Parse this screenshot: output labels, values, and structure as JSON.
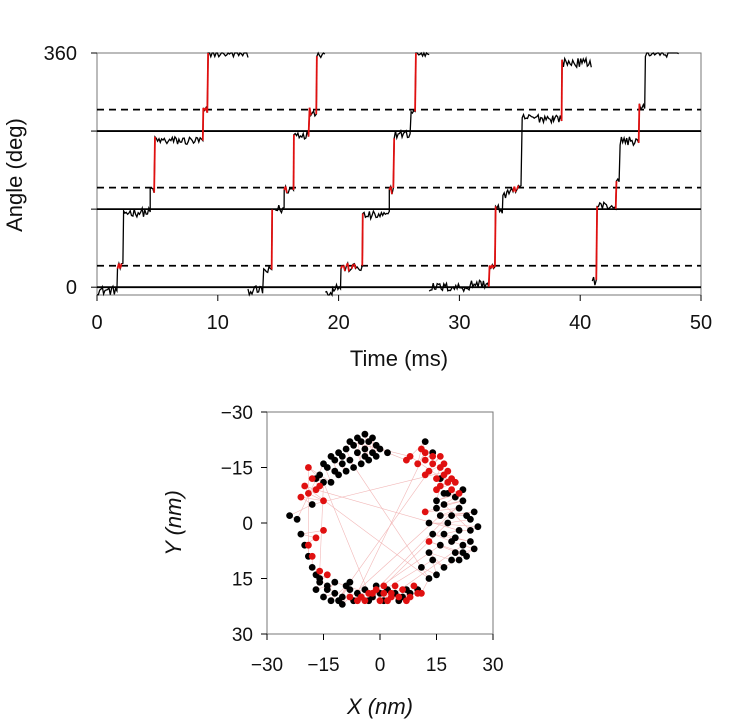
{
  "colors": {
    "trace": "#000000",
    "highlight": "#e01010",
    "frame": "#777777",
    "link": "#f2b8b8"
  },
  "chart_data": [
    {
      "type": "line",
      "title": "",
      "xlabel": "Time (ms)",
      "ylabel": "Angle (deg)",
      "xlim": [
        0,
        50
      ],
      "ylim": [
        -12,
        360
      ],
      "xticks": [
        0,
        10,
        20,
        30,
        40,
        50
      ],
      "xtick_labels": [
        "0",
        "10",
        "20",
        "30",
        "40",
        "50"
      ],
      "yticks": [
        0,
        360
      ],
      "ytick_labels": [
        "0",
        "360"
      ],
      "solid_lines": [
        0,
        120,
        240
      ],
      "dashed_lines": [
        33,
        153,
        273
      ],
      "grid": false,
      "legend": "none",
      "steps": [
        {
          "t": 0.0,
          "a": -5
        },
        {
          "t": 1.7,
          "a": 30
        },
        {
          "t": 2.2,
          "a": 115
        },
        {
          "t": 4.4,
          "a": 150
        },
        {
          "t": 4.8,
          "a": 225
        },
        {
          "t": 8.8,
          "a": 270
        },
        {
          "t": 9.2,
          "a": 360
        },
        {
          "t": 12.5,
          "a": -5
        },
        {
          "t": 13.8,
          "a": 25
        },
        {
          "t": 14.5,
          "a": 120
        },
        {
          "t": 15.5,
          "a": 150
        },
        {
          "t": 16.3,
          "a": 235
        },
        {
          "t": 17.6,
          "a": 270
        },
        {
          "t": 18.2,
          "a": 360
        },
        {
          "t": 18.9,
          "a": -10
        },
        {
          "t": 19.5,
          "a": 0
        },
        {
          "t": 20.2,
          "a": 30
        },
        {
          "t": 22.0,
          "a": 110
        },
        {
          "t": 24.2,
          "a": 150
        },
        {
          "t": 24.6,
          "a": 235
        },
        {
          "t": 26.0,
          "a": 270
        },
        {
          "t": 26.4,
          "a": 360
        },
        {
          "t": 27.5,
          "a": 0
        },
        {
          "t": 31.0,
          "a": 5
        },
        {
          "t": 32.5,
          "a": 30
        },
        {
          "t": 33.0,
          "a": 120
        },
        {
          "t": 33.6,
          "a": 140
        },
        {
          "t": 34.0,
          "a": 150
        },
        {
          "t": 35.2,
          "a": 260
        },
        {
          "t": 37.8,
          "a": 260
        },
        {
          "t": 38.5,
          "a": 345
        },
        {
          "t": 41.0,
          "a": 10
        },
        {
          "t": 41.4,
          "a": 125
        },
        {
          "t": 43.0,
          "a": 160
        },
        {
          "t": 43.3,
          "a": 225
        },
        {
          "t": 44.9,
          "a": 275
        },
        {
          "t": 45.4,
          "a": 360
        }
      ]
    },
    {
      "type": "scatter",
      "title": "",
      "xlabel": "X (nm)",
      "ylabel": "Y (nm)",
      "xlim": [
        -30,
        30
      ],
      "ylim": [
        -30,
        30
      ],
      "y_inverted": true,
      "xticks": [
        -30,
        -15,
        0,
        15,
        30
      ],
      "xtick_labels": [
        "−30",
        "−15",
        "0",
        "15",
        "30"
      ],
      "yticks": [
        -30,
        -15,
        0,
        15,
        30
      ],
      "ytick_labels": [
        "−30",
        "−15",
        "0",
        "15",
        "30"
      ],
      "grid": false,
      "legend": "none",
      "series": [
        {
          "color": "#000000",
          "points": [
            [
              -15,
              -16
            ],
            [
              -13,
              -18
            ],
            [
              -11,
              -19
            ],
            [
              -9,
              -20
            ],
            [
              -7,
              -21
            ],
            [
              -5,
              -22
            ],
            [
              -3,
              -22
            ],
            [
              -1,
              -21
            ],
            [
              0,
              -20
            ],
            [
              -2,
              -19
            ],
            [
              -4,
              -18
            ],
            [
              -6,
              -19
            ],
            [
              -8,
              -17
            ],
            [
              -10,
              -16
            ],
            [
              -12,
              -14
            ],
            [
              -14,
              -15
            ],
            [
              -16,
              -13
            ],
            [
              -17,
              -12
            ],
            [
              -12,
              -17
            ],
            [
              -6,
              -23
            ],
            [
              -4,
              -24
            ],
            [
              -8,
              -22
            ],
            [
              -10,
              -18
            ],
            [
              -3,
              -17
            ],
            [
              -1,
              -18
            ],
            [
              2,
              -19
            ],
            [
              -5,
              -16
            ],
            [
              -7,
              -15
            ],
            [
              -11,
              -13
            ],
            [
              -15,
              -11
            ],
            [
              -13,
              -11
            ],
            [
              -9,
              -14
            ],
            [
              -4,
              -20
            ],
            [
              -2,
              -23
            ],
            [
              12,
              -22
            ],
            [
              14,
              -19
            ],
            [
              16,
              -12
            ],
            [
              17,
              -8
            ],
            [
              15,
              -6
            ],
            [
              16,
              -2
            ],
            [
              18,
              0
            ],
            [
              17,
              3
            ],
            [
              19,
              5
            ],
            [
              20,
              8
            ],
            [
              21,
              10
            ],
            [
              22,
              6
            ],
            [
              24,
              2
            ],
            [
              23,
              -2
            ],
            [
              21,
              -4
            ],
            [
              20,
              -7
            ],
            [
              22,
              -9
            ],
            [
              25,
              -3
            ],
            [
              26,
              1
            ],
            [
              24,
              5
            ],
            [
              22,
              8
            ],
            [
              19,
              10
            ],
            [
              17,
              12
            ],
            [
              15,
              14
            ],
            [
              14,
              10
            ],
            [
              16,
              6
            ],
            [
              13,
              0
            ],
            [
              15,
              -4
            ],
            [
              18,
              -8
            ],
            [
              20,
              4
            ],
            [
              23,
              9
            ],
            [
              25,
              7
            ],
            [
              21,
              2
            ],
            [
              19,
              -2
            ],
            [
              17,
              -5
            ],
            [
              14,
              3
            ],
            [
              13,
              8
            ],
            [
              11,
              12
            ],
            [
              13,
              15
            ],
            [
              24,
              -1
            ],
            [
              22,
              -6
            ],
            [
              -16,
              16
            ],
            [
              -14,
              18
            ],
            [
              -12,
              19
            ],
            [
              -10,
              20
            ],
            [
              -8,
              18
            ],
            [
              -6,
              19
            ],
            [
              -4,
              18
            ],
            [
              -2,
              20
            ],
            [
              0,
              19
            ],
            [
              2,
              18
            ],
            [
              4,
              19
            ],
            [
              6,
              20
            ],
            [
              8,
              19
            ],
            [
              10,
              18
            ],
            [
              -15,
              20
            ],
            [
              -13,
              21
            ],
            [
              -11,
              21
            ],
            [
              -9,
              17
            ],
            [
              -7,
              21
            ],
            [
              -12,
              16
            ],
            [
              -5,
              20
            ],
            [
              -3,
              21
            ],
            [
              -1,
              17
            ],
            [
              1,
              21
            ],
            [
              -17,
              18
            ],
            [
              -16,
              15
            ],
            [
              -14,
              17
            ],
            [
              -18,
              12
            ],
            [
              -10,
              22
            ],
            [
              -8,
              16
            ],
            [
              -20,
              6
            ],
            [
              -21,
              3
            ],
            [
              -22,
              -1
            ],
            [
              -24,
              -2
            ],
            [
              -19,
              9
            ],
            [
              -17,
              14
            ],
            [
              -18,
              -5
            ],
            [
              5,
              21
            ],
            [
              7,
              18
            ]
          ]
        },
        {
          "color": "#e01010",
          "points": [
            [
              -19,
              -15
            ],
            [
              -18,
              -12
            ],
            [
              -20,
              -10
            ],
            [
              -17,
              -9
            ],
            [
              -21,
              -7
            ],
            [
              -19,
              -8
            ],
            [
              -16,
              -10
            ],
            [
              -15,
              -6
            ],
            [
              7,
              -17
            ],
            [
              8,
              -18
            ],
            [
              10,
              -16
            ],
            [
              12,
              -17
            ],
            [
              14,
              -16
            ],
            [
              16,
              -15
            ],
            [
              18,
              -14
            ],
            [
              15,
              -12
            ],
            [
              13,
              -14
            ],
            [
              12,
              -19
            ],
            [
              11,
              -20
            ],
            [
              14,
              -18
            ],
            [
              17,
              -13
            ],
            [
              16,
              -10
            ],
            [
              18,
              -11
            ],
            [
              19,
              -9
            ],
            [
              20,
              -11
            ],
            [
              21,
              -8
            ],
            [
              15,
              -9
            ],
            [
              17,
              -16
            ],
            [
              19,
              -12
            ],
            [
              16,
              -18
            ],
            [
              12,
              -13
            ],
            [
              -1,
              18
            ],
            [
              1,
              19
            ],
            [
              3,
              20
            ],
            [
              5,
              20
            ],
            [
              7,
              21
            ],
            [
              -3,
              19
            ],
            [
              -5,
              20
            ],
            [
              2,
              21
            ],
            [
              4,
              17
            ],
            [
              0,
              21
            ],
            [
              6,
              18
            ],
            [
              8,
              20
            ],
            [
              9,
              17
            ],
            [
              10,
              19
            ],
            [
              -4,
              21
            ],
            [
              -2,
              19
            ],
            [
              1,
              17
            ],
            [
              3,
              19
            ],
            [
              11,
              19
            ],
            [
              -6,
              21
            ],
            [
              -8,
              20
            ],
            [
              -14,
              14
            ],
            [
              -16,
              13
            ],
            [
              -17,
              4
            ],
            [
              -18,
              9
            ],
            [
              -15,
              2
            ],
            [
              13,
              5
            ],
            [
              12,
              -3
            ],
            [
              -19,
              6
            ]
          ]
        }
      ]
    }
  ]
}
